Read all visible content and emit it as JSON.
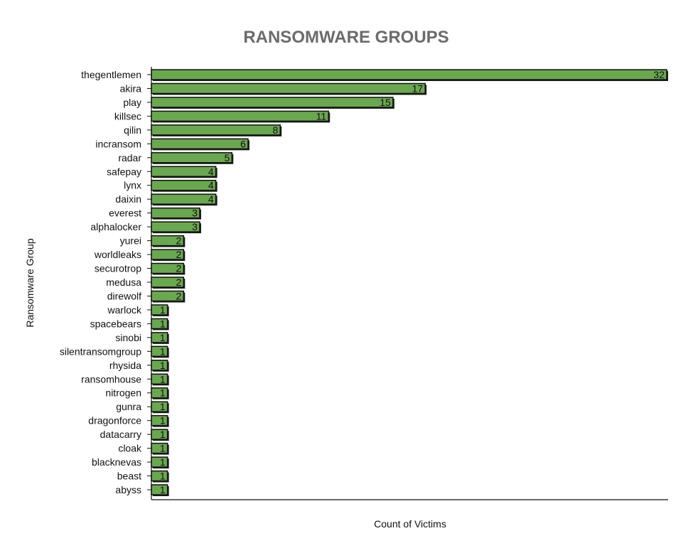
{
  "chart_data": {
    "type": "bar",
    "orientation": "horizontal",
    "title": "RANSOMWARE GROUPS",
    "xlabel": "Count of Victims",
    "ylabel": "Ransomware Group",
    "categories": [
      "thegentlemen",
      "akira",
      "play",
      "killsec",
      "qilin",
      "incransom",
      "radar",
      "safepay",
      "lynx",
      "daixin",
      "everest",
      "alphalocker",
      "yurei",
      "worldleaks",
      "securotrop",
      "medusa",
      "direwolf",
      "warlock",
      "spacebears",
      "sinobi",
      "silentransomgroup",
      "rhysida",
      "ransomhouse",
      "nitrogen",
      "gunra",
      "dragonforce",
      "datacarry",
      "cloak",
      "blacknevas",
      "beast",
      "abyss"
    ],
    "values": [
      32,
      17,
      15,
      11,
      8,
      6,
      5,
      4,
      4,
      4,
      3,
      3,
      2,
      2,
      2,
      2,
      2,
      1,
      1,
      1,
      1,
      1,
      1,
      1,
      1,
      1,
      1,
      1,
      1,
      1,
      1
    ],
    "xlim": [
      0,
      32
    ],
    "grid": false,
    "bar_color": "#6aa84f",
    "edge_color": "#111111"
  }
}
